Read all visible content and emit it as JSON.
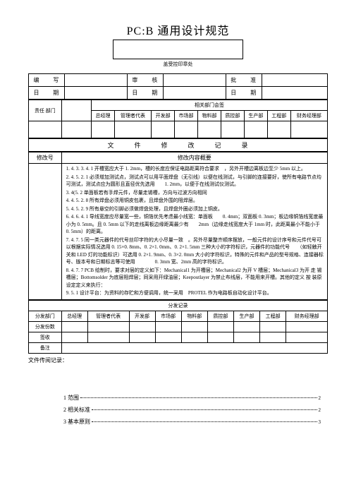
{
  "doc": {
    "title": "PC:B 通用设计规范",
    "sealLabel": "盖受控印章处"
  },
  "sig": {
    "writeLabel": "编　写",
    "reviewLabel": "审　核",
    "approveLabel": "批　准",
    "dateLabel": "日　期"
  },
  "dept": {
    "respLabel": "责任 部门",
    "relLabel": "相关部门会签",
    "cols": [
      "总经理",
      "管理者代表",
      "开发部",
      "市场部",
      "物料部",
      "质控部",
      "生产部",
      "工程部",
      "财务经理部"
    ]
  },
  "mod": {
    "title": "文　件　修　改　记　录",
    "revLabel": "修改号",
    "summaryLabel": "修改内容概要",
    "items": [
      "4. 3. 3. 4. 1 开槽宽应大于 1. 2mm，槽的长度应保证电路距离符合要求　，另外开槽边离板边至少 5mm 以上。",
      "4. 5. 2. 1 必须增加测试点，测试点可以用平面焊盘（无引线）以便在线测试，与引脚的连接要好，使所有电路节点均可测试，测试点应为圆形且直径优先选用　　1. 2mm，以便于在线测试仪测试。",
      "4(5. 2 单面板若有手焊元件，尽量走锡槽，方向与过波方向相同",
      "4. 5. 2. 8 所有焊盘必须用铜皮包裹，且焊盘外围的阻焊层。",
      "4. 5. 2. 9 所有悬空的引脚必须做焊盘处理，且焊盘外圈必须加上铜皮。",
      "4. 6. 4. 1 导线宽度应尽量宽一些，铜箔优先考虑最小线宽：单面板　　0. 4mm；双面板 0. 3mm；板边缘铜箔线宽度最小为 0. 5mm。且 0. 5mm 以下的走线离板边缘距离最少有　　2mm（边缘走线宽度大于 1mm 时，此距离最小不能小于 0. 5mm）的距离。",
      "4. 7. 5 同一类元器件的代号丝印字符的大小尽量一致　。另外尽量整齐顺序摆放，一般元件的设计序号和元件代号可以根据实际情况选用 0. 15×0. 8mm、0. 2×1. 0mm、0. 2×1. 5mm 三种大小的字符标识，元器件的功能代号　　（如轻触开关和 LED 灯的功能标识）可选用 0. 2×1. 9mm、0. 3×2. 0mm 大小的字符标识，特殊的元件和产品的型号规格、连接器标号、版本号和日期标志等可使用　　　　0. 3mm 宽、2mm 高的字符标识。",
      "4. 7. 7 PCB 绘制时，要求对层的定义如下：Mechanical1 为开槽层；Mechanical2 为开 V 槽层；Mechanical3 为开 走 锡槽层；Bottomsolder 为底层阻焊层；同采用开绿油层；Keepoutlayer 为禁止布线层，不能用来开槽。其他的定义 按 装原设定定义来执行：",
      "5. 1 设计平台：为资料的存贮和方便调用，统一采用　PROTEL 作为电路板自动化设计平台。"
    ]
  },
  "dist": {
    "title": "分发记录",
    "deptLabel": "分发部门",
    "copiesLabel": "分发份数",
    "receiptLabel": "签收",
    "remarkLabel": "备注",
    "cols": [
      "总经理",
      "管理者代表",
      "开发部",
      "市场部",
      "物料部",
      "质控部",
      "生产部",
      "工程部",
      "财务经理部"
    ]
  },
  "fileRecord": "文件传阅记录：",
  "toc": {
    "items": [
      {
        "num": "1",
        "label": "范围",
        "page": "2"
      },
      {
        "num": "2",
        "label": "相关标准",
        "page": "2"
      },
      {
        "num": "3",
        "label": "基本原则",
        "page": "3"
      }
    ]
  }
}
